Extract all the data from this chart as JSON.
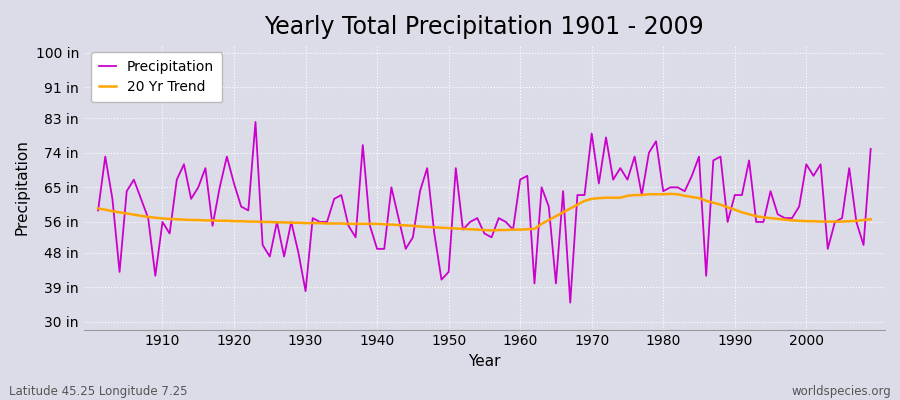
{
  "title": "Yearly Total Precipitation 1901 - 2009",
  "ylabel": "Precipitation",
  "xlabel": "Year",
  "subtitle_left": "Latitude 45.25 Longitude 7.25",
  "subtitle_right": "worldspecies.org",
  "years": [
    1901,
    1902,
    1903,
    1904,
    1905,
    1906,
    1907,
    1908,
    1909,
    1910,
    1911,
    1912,
    1913,
    1914,
    1915,
    1916,
    1917,
    1918,
    1919,
    1920,
    1921,
    1922,
    1923,
    1924,
    1925,
    1926,
    1927,
    1928,
    1929,
    1930,
    1931,
    1932,
    1933,
    1934,
    1935,
    1936,
    1937,
    1938,
    1939,
    1940,
    1941,
    1942,
    1943,
    1944,
    1945,
    1946,
    1947,
    1948,
    1949,
    1950,
    1951,
    1952,
    1953,
    1954,
    1955,
    1956,
    1957,
    1958,
    1959,
    1960,
    1961,
    1962,
    1963,
    1964,
    1965,
    1966,
    1967,
    1968,
    1969,
    1970,
    1971,
    1972,
    1973,
    1974,
    1975,
    1976,
    1977,
    1978,
    1979,
    1980,
    1981,
    1982,
    1983,
    1984,
    1985,
    1986,
    1987,
    1988,
    1989,
    1990,
    1991,
    1992,
    1993,
    1994,
    1995,
    1996,
    1997,
    1998,
    1999,
    2000,
    2001,
    2002,
    2003,
    2004,
    2005,
    2006,
    2007,
    2008,
    2009
  ],
  "precip": [
    59,
    73,
    62,
    43,
    64,
    67,
    62,
    57,
    42,
    56,
    53,
    67,
    71,
    62,
    65,
    70,
    55,
    65,
    73,
    66,
    60,
    59,
    82,
    50,
    47,
    56,
    47,
    56,
    48,
    38,
    57,
    56,
    56,
    62,
    63,
    55,
    52,
    76,
    55,
    49,
    49,
    65,
    57,
    49,
    52,
    64,
    70,
    53,
    41,
    43,
    70,
    54,
    56,
    57,
    53,
    52,
    57,
    56,
    54,
    67,
    68,
    40,
    65,
    60,
    40,
    64,
    35,
    63,
    63,
    79,
    66,
    78,
    67,
    70,
    67,
    73,
    63,
    74,
    77,
    64,
    65,
    65,
    64,
    68,
    73,
    42,
    72,
    73,
    56,
    63,
    63,
    72,
    56,
    56,
    64,
    58,
    57,
    57,
    60,
    71,
    68,
    71,
    49,
    56,
    57,
    70,
    56,
    50,
    75
  ],
  "trend": [
    59.5,
    59.2,
    58.8,
    58.5,
    58.2,
    57.9,
    57.6,
    57.3,
    57.1,
    56.9,
    56.8,
    56.7,
    56.6,
    56.5,
    56.5,
    56.4,
    56.4,
    56.3,
    56.3,
    56.2,
    56.2,
    56.1,
    56.1,
    56.0,
    56.0,
    55.9,
    55.9,
    55.8,
    55.8,
    55.7,
    55.7,
    55.7,
    55.6,
    55.6,
    55.6,
    55.5,
    55.5,
    55.5,
    55.5,
    55.5,
    55.4,
    55.3,
    55.2,
    55.1,
    55.0,
    54.8,
    54.7,
    54.6,
    54.5,
    54.4,
    54.3,
    54.2,
    54.1,
    54.0,
    53.9,
    53.8,
    53.9,
    53.9,
    54.0,
    54.0,
    54.1,
    54.2,
    55.5,
    56.5,
    57.5,
    58.5,
    59.5,
    60.5,
    61.5,
    62.0,
    62.2,
    62.3,
    62.3,
    62.3,
    62.8,
    63.0,
    63.0,
    63.2,
    63.2,
    63.2,
    63.3,
    63.2,
    62.8,
    62.5,
    62.2,
    61.5,
    61.0,
    60.5,
    59.8,
    59.2,
    58.5,
    58.0,
    57.5,
    57.2,
    57.0,
    56.8,
    56.6,
    56.4,
    56.3,
    56.2,
    56.2,
    56.1,
    56.1,
    56.1,
    56.1,
    56.2,
    56.3,
    56.5,
    56.7
  ],
  "precip_color": "#cc00cc",
  "trend_color": "#ffa500",
  "bg_color": "#dcdce8",
  "plot_bg_color": "#dcdce8",
  "grid_color": "#ffffff",
  "yticks": [
    30,
    39,
    48,
    56,
    65,
    74,
    83,
    91,
    100
  ],
  "ytick_labels": [
    "30 in",
    "39 in",
    "48 in",
    "56 in",
    "65 in",
    "74 in",
    "83 in",
    "91 in",
    "100 in"
  ],
  "ylim": [
    28,
    102
  ],
  "xlim": [
    1899,
    2011
  ],
  "xticks": [
    1910,
    1920,
    1930,
    1940,
    1950,
    1960,
    1970,
    1980,
    1990,
    2000
  ],
  "title_fontsize": 17,
  "axis_fontsize": 11,
  "tick_fontsize": 10,
  "legend_fontsize": 10
}
